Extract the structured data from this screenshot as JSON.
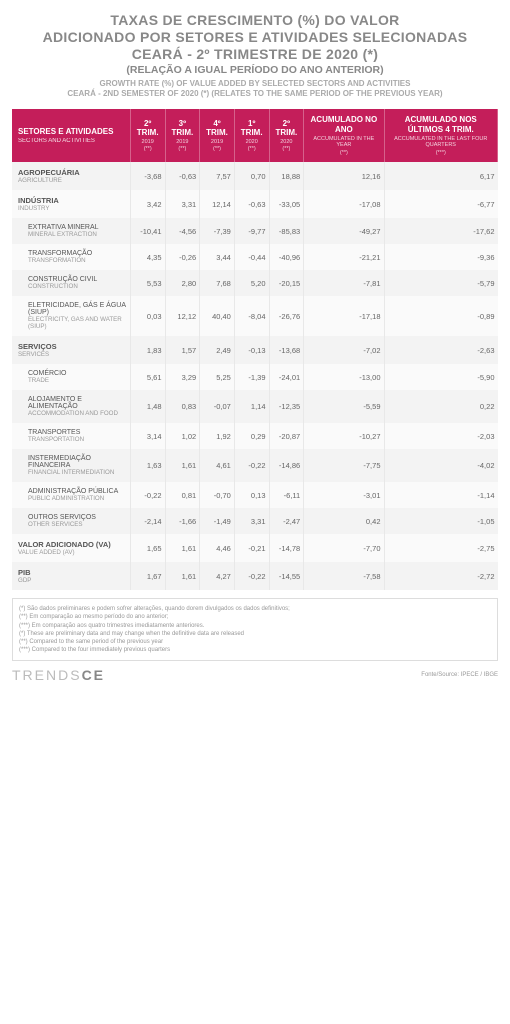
{
  "title": {
    "line1": "TAXAS DE CRESCIMENTO (%) DO VALOR",
    "line2": "ADICIONADO POR SETORES E ATIVIDADES SELECIONADAS",
    "line3": "CEARÁ - 2º TRIMESTRE DE 2020 (*)",
    "sub1": "(RELAÇÃO A IGUAL PERÍODO DO ANO ANTERIOR)",
    "sub2a": "GROWTH RATE (%) OF VALUE ADDED BY SELECTED SECTORS AND ACTIVITIES",
    "sub2b": "CEARÁ - 2ND SEMESTER OF 2020 (*) (RELATES TO THE SAME PERIOD OF THE PREVIOUS YEAR)"
  },
  "header": {
    "col0_main": "SETORES E ATIVIDADES",
    "col0_sub": "SECTORS AND ACTIVITIES",
    "cols": [
      {
        "top": "2º TRIM.",
        "mid": "2019",
        "bot": "(**)"
      },
      {
        "top": "3º TRIM.",
        "mid": "2019",
        "bot": "(**)"
      },
      {
        "top": "4º TRIM.",
        "mid": "2019",
        "bot": "(**)"
      },
      {
        "top": "1º TRIM.",
        "mid": "2020",
        "bot": "(**)"
      },
      {
        "top": "2º TRIM.",
        "mid": "2020",
        "bot": "(**)"
      },
      {
        "top": "ACUMULADO NO ANO",
        "mid": "ACCUMULATED IN THE YEAR",
        "bot": "(**)"
      },
      {
        "top": "ACUMULADO NOS ÚLTIMOS 4 TRIM.",
        "mid": "ACCUMULATED IN THE LAST FOUR QUARTERS",
        "bot": "(***)"
      }
    ]
  },
  "rows": [
    {
      "indent": false,
      "pt": "AGROPECUÁRIA",
      "en": "AGRICULTURE",
      "v": [
        "-3,68",
        "-0,63",
        "7,57",
        "0,70",
        "18,88",
        "12,16",
        "6,17"
      ]
    },
    {
      "indent": false,
      "pt": "INDÚSTRIA",
      "en": "INDUSTRY",
      "v": [
        "3,42",
        "3,31",
        "12,14",
        "-0,63",
        "-33,05",
        "-17,08",
        "-6,77"
      ]
    },
    {
      "indent": true,
      "pt": "EXTRATIVA MINERAL",
      "en": "MINERAL EXTRACTION",
      "v": [
        "-10,41",
        "-4,56",
        "-7,39",
        "-9,77",
        "-85,83",
        "-49,27",
        "-17,62"
      ]
    },
    {
      "indent": true,
      "pt": "TRANSFORMAÇÃO",
      "en": "TRANSFORMATION",
      "v": [
        "4,35",
        "-0,26",
        "3,44",
        "-0,44",
        "-40,96",
        "-21,21",
        "-9,36"
      ]
    },
    {
      "indent": true,
      "pt": "CONSTRUÇÃO CIVIL",
      "en": "CONSTRUCTION",
      "v": [
        "5,53",
        "2,80",
        "7,68",
        "5,20",
        "-20,15",
        "-7,81",
        "-5,79"
      ]
    },
    {
      "indent": true,
      "pt": "ELETRICIDADE, GÁS E ÁGUA (SIUP)",
      "en": "ELECTRICITY, GAS AND WATER (SIUP)",
      "v": [
        "0,03",
        "12,12",
        "40,40",
        "-8,04",
        "-26,76",
        "-17,18",
        "-0,89"
      ]
    },
    {
      "indent": false,
      "pt": "SERVIÇOS",
      "en": "SERVICES",
      "v": [
        "1,83",
        "1,57",
        "2,49",
        "-0,13",
        "-13,68",
        "-7,02",
        "-2,63"
      ]
    },
    {
      "indent": true,
      "pt": "COMÉRCIO",
      "en": "TRADE",
      "v": [
        "5,61",
        "3,29",
        "5,25",
        "-1,39",
        "-24,01",
        "-13,00",
        "-5,90"
      ]
    },
    {
      "indent": true,
      "pt": "ALOJAMENTO E ALIMENTAÇÃO",
      "en": "ACCOMMODATION AND FOOD",
      "v": [
        "1,48",
        "0,83",
        "-0,07",
        "1,14",
        "-12,35",
        "-5,59",
        "0,22"
      ]
    },
    {
      "indent": true,
      "pt": "TRANSPORTES",
      "en": "TRANSPORTATION",
      "v": [
        "3,14",
        "1,02",
        "1,92",
        "0,29",
        "-20,87",
        "-10,27",
        "-2,03"
      ]
    },
    {
      "indent": true,
      "pt": "INSTERMEDIAÇÃO FINANCEIRA",
      "en": "FINANCIAL INTERMEDIATION",
      "v": [
        "1,63",
        "1,61",
        "4,61",
        "-0,22",
        "-14,86",
        "-7,75",
        "-4,02"
      ]
    },
    {
      "indent": true,
      "pt": "ADMINISTRAÇÃO PÚBLICA",
      "en": "PUBLIC ADMINISTRATION",
      "v": [
        "-0,22",
        "0,81",
        "-0,70",
        "0,13",
        "-6,11",
        "-3,01",
        "-1,14"
      ]
    },
    {
      "indent": true,
      "pt": "OUTROS SERVIÇOS",
      "en": "OTHER SERVICES",
      "v": [
        "-2,14",
        "-1,66",
        "-1,49",
        "3,31",
        "-2,47",
        "0,42",
        "-1,05"
      ]
    },
    {
      "indent": false,
      "pt": "VALOR ADICIONADO (VA)",
      "en": "VALUE ADDED (AV)",
      "v": [
        "1,65",
        "1,61",
        "4,46",
        "-0,21",
        "-14,78",
        "-7,70",
        "-2,75"
      ]
    },
    {
      "indent": false,
      "pt": "PIB",
      "en": "GDP",
      "v": [
        "1,67",
        "1,61",
        "4,27",
        "-0,22",
        "-14,55",
        "-7,58",
        "-2,72"
      ]
    }
  ],
  "notes": [
    "(*) São dados preliminares e podem sofrer alterações, quando dorem divulgados os dados definitivos;",
    "(**) Em comparação ao mesmo período do ano anterior;",
    "(***) Em comparação aos quatro trimestres imediatamente anteriores.",
    "(*) These are preliminary data and may change when the definitive data are released",
    "(**) Compared to the same period of the previous year",
    "(***) Compared to the four immediately previous quarters"
  ],
  "footer": {
    "brand_light": "TRENDS",
    "brand_bold": "CE",
    "source": "Fonte/Source: IPECE / IBGE"
  },
  "colors": {
    "header_bg": "#c41e5a",
    "row_odd": "#f3f3f3",
    "row_even": "#fafafa"
  }
}
